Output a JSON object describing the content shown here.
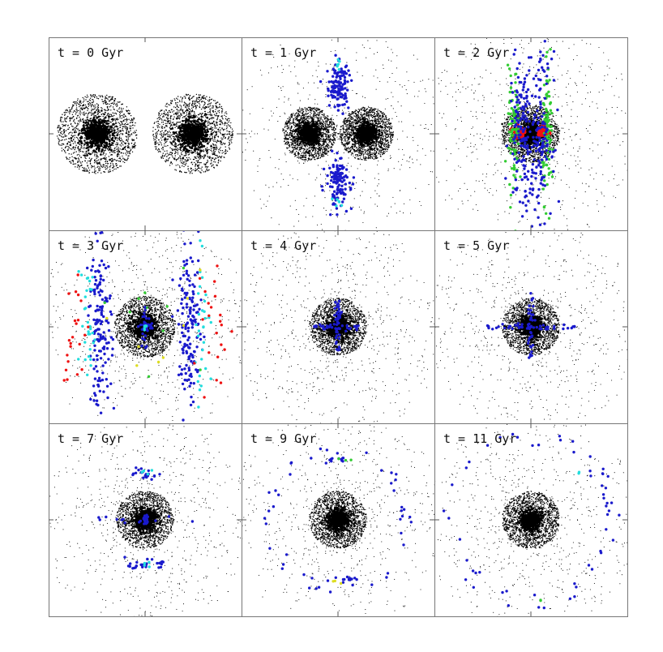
{
  "chart_data": {
    "type": "scatter",
    "layout": "3x3 grid of panels",
    "grid": false,
    "colors": {
      "galaxy_stars": "#000000",
      "tracer_blue": "#1a1acc",
      "tracer_cyan": "#22dddd",
      "tracer_green": "#33cc33",
      "tracer_red": "#ee1111",
      "tracer_yellow": "#dddd22"
    },
    "panels": [
      {
        "label": "t = 0 Gyr",
        "description": "two separate galaxies side by side",
        "galaxies": [
          {
            "x": -0.5,
            "y": 0.0,
            "radius": 0.42
          },
          {
            "x": 0.5,
            "y": 0.0,
            "radius": 0.42
          }
        ],
        "halo": 0.0,
        "features": []
      },
      {
        "label": "t = 1 Gyr",
        "description": "galaxies approaching with tidal features",
        "galaxies": [
          {
            "x": -0.3,
            "y": 0.0,
            "radius": 0.28
          },
          {
            "x": 0.3,
            "y": 0.0,
            "radius": 0.28
          }
        ],
        "halo": 0.75,
        "features": [
          {
            "kind": "blob",
            "cx": 0.0,
            "cy": 0.5,
            "rx": 0.12,
            "ry": 0.25,
            "n": 120,
            "color": "tracer_blue"
          },
          {
            "kind": "blob",
            "cx": 0.0,
            "cy": -0.5,
            "rx": 0.12,
            "ry": 0.25,
            "n": 120,
            "color": "tracer_blue"
          },
          {
            "kind": "blob",
            "cx": 0.0,
            "cy": 0.72,
            "rx": 0.05,
            "ry": 0.06,
            "n": 6,
            "color": "tracer_cyan"
          },
          {
            "kind": "blob",
            "cx": 0.0,
            "cy": -0.72,
            "rx": 0.05,
            "ry": 0.06,
            "n": 6,
            "color": "tracer_cyan"
          }
        ]
      },
      {
        "label": "t = 2 Gyr",
        "description": "first passage with strong tidal streams",
        "galaxies": [
          {
            "x": 0.0,
            "y": 0.0,
            "radius": 0.3
          }
        ],
        "halo": 0.9,
        "features": [
          {
            "kind": "blob",
            "cx": -0.13,
            "cy": 0.02,
            "rx": 0.05,
            "ry": 0.06,
            "n": 60,
            "color": "tracer_red"
          },
          {
            "kind": "blob",
            "cx": 0.13,
            "cy": 0.02,
            "rx": 0.05,
            "ry": 0.06,
            "n": 60,
            "color": "tracer_red"
          },
          {
            "kind": "blob",
            "cx": -0.18,
            "cy": 0.0,
            "rx": 0.06,
            "ry": 0.65,
            "n": 90,
            "color": "tracer_green"
          },
          {
            "kind": "blob",
            "cx": 0.18,
            "cy": 0.0,
            "rx": 0.06,
            "ry": 0.65,
            "n": 90,
            "color": "tracer_green"
          },
          {
            "kind": "blob",
            "cx": -0.1,
            "cy": 0.0,
            "rx": 0.12,
            "ry": 0.82,
            "n": 140,
            "color": "tracer_blue"
          },
          {
            "kind": "blob",
            "cx": 0.1,
            "cy": 0.0,
            "rx": 0.12,
            "ry": 0.82,
            "n": 140,
            "color": "tracer_blue"
          }
        ]
      },
      {
        "label": "t = 3 Gyr",
        "description": "merged remnant with extended shells",
        "galaxies": [
          {
            "x": 0.0,
            "y": 0.0,
            "radius": 0.32
          }
        ],
        "halo": 1.0,
        "features": [
          {
            "kind": "blob",
            "cx": -0.47,
            "cy": 0.0,
            "rx": 0.12,
            "ry": 0.82,
            "n": 150,
            "color": "tracer_blue"
          },
          {
            "kind": "blob",
            "cx": 0.47,
            "cy": 0.0,
            "rx": 0.12,
            "ry": 0.82,
            "n": 150,
            "color": "tracer_blue"
          },
          {
            "kind": "blob",
            "cx": -0.6,
            "cy": 0.0,
            "rx": 0.1,
            "ry": 0.7,
            "n": 30,
            "color": "tracer_cyan"
          },
          {
            "kind": "blob",
            "cx": 0.6,
            "cy": 0.0,
            "rx": 0.1,
            "ry": 0.7,
            "n": 30,
            "color": "tracer_cyan"
          },
          {
            "kind": "blob",
            "cx": -0.75,
            "cy": 0.0,
            "rx": 0.15,
            "ry": 0.8,
            "n": 22,
            "color": "tracer_red"
          },
          {
            "kind": "blob",
            "cx": 0.75,
            "cy": 0.0,
            "rx": 0.15,
            "ry": 0.8,
            "n": 22,
            "color": "tracer_red"
          },
          {
            "kind": "blob",
            "cx": 0.0,
            "cy": 0.0,
            "rx": 0.6,
            "ry": 0.7,
            "n": 10,
            "color": "tracer_green"
          },
          {
            "kind": "blob",
            "cx": 0.0,
            "cy": 0.0,
            "rx": 0.6,
            "ry": 0.7,
            "n": 8,
            "color": "tracer_yellow"
          },
          {
            "kind": "cross",
            "cx": 0.0,
            "cy": 0.0,
            "w": 0.08,
            "h": 0.22,
            "n": 40,
            "color": "tracer_blue"
          },
          {
            "kind": "blob",
            "cx": 0.0,
            "cy": 0.0,
            "rx": 0.02,
            "ry": 0.04,
            "n": 8,
            "color": "tracer_cyan"
          }
        ]
      },
      {
        "label": "t = 4 Gyr",
        "description": "relaxing remnant",
        "galaxies": [
          {
            "x": 0.0,
            "y": 0.0,
            "radius": 0.3
          }
        ],
        "halo": 1.0,
        "features": [
          {
            "kind": "cross",
            "cx": 0.0,
            "cy": 0.0,
            "w": 0.25,
            "h": 0.27,
            "n": 80,
            "color": "tracer_blue"
          }
        ]
      },
      {
        "label": "t = 5 Gyr",
        "description": "relaxing remnant",
        "galaxies": [
          {
            "x": 0.0,
            "y": 0.0,
            "radius": 0.3
          }
        ],
        "halo": 1.0,
        "features": [
          {
            "kind": "cross",
            "cx": 0.0,
            "cy": 0.0,
            "w": 0.48,
            "h": 0.35,
            "n": 80,
            "color": "tracer_blue"
          }
        ]
      },
      {
        "label": "t = 7 Gyr",
        "description": "remnant with tracer rings",
        "galaxies": [
          {
            "x": 0.0,
            "y": 0.0,
            "radius": 0.3
          }
        ],
        "halo": 1.0,
        "features": [
          {
            "kind": "blob",
            "cx": 0.0,
            "cy": 0.47,
            "rx": 0.12,
            "ry": 0.05,
            "n": 25,
            "color": "tracer_blue"
          },
          {
            "kind": "blob",
            "cx": 0.0,
            "cy": -0.47,
            "rx": 0.18,
            "ry": 0.05,
            "n": 30,
            "color": "tracer_blue"
          },
          {
            "kind": "blob",
            "cx": 0.0,
            "cy": 0.5,
            "rx": 0.06,
            "ry": 0.03,
            "n": 4,
            "color": "tracer_cyan"
          },
          {
            "kind": "blob",
            "cx": 0.0,
            "cy": -0.45,
            "rx": 0.06,
            "ry": 0.03,
            "n": 4,
            "color": "tracer_cyan"
          },
          {
            "kind": "cross",
            "cx": 0.0,
            "cy": 0.0,
            "w": 0.55,
            "h": 0.05,
            "n": 30,
            "color": "tracer_blue"
          }
        ]
      },
      {
        "label": "t = 9 Gyr",
        "description": "tracers dispersing into ring",
        "galaxies": [
          {
            "x": 0.0,
            "y": 0.0,
            "radius": 0.3
          }
        ],
        "halo": 1.0,
        "features": [
          {
            "kind": "ring",
            "cx": 0.0,
            "cy": 0.0,
            "r": 0.72,
            "n": 45,
            "color": "tracer_blue"
          },
          {
            "kind": "blob",
            "cx": 0.0,
            "cy": 0.62,
            "rx": 0.15,
            "ry": 0.03,
            "n": 12,
            "color": "tracer_blue"
          },
          {
            "kind": "blob",
            "cx": 0.0,
            "cy": -0.62,
            "rx": 0.2,
            "ry": 0.03,
            "n": 12,
            "color": "tracer_blue"
          },
          {
            "kind": "blob",
            "cx": 0.0,
            "cy": 0.62,
            "rx": 0.15,
            "ry": 0.03,
            "n": 3,
            "color": "tracer_green"
          },
          {
            "kind": "blob",
            "cx": 0.0,
            "cy": -0.64,
            "rx": 0.1,
            "ry": 0.03,
            "n": 3,
            "color": "tracer_yellow"
          }
        ]
      },
      {
        "label": "t = 11 Gyr",
        "description": "tracers in wide ring",
        "galaxies": [
          {
            "x": 0.0,
            "y": 0.0,
            "radius": 0.3
          }
        ],
        "halo": 1.0,
        "features": [
          {
            "kind": "ring",
            "cx": 0.0,
            "cy": 0.0,
            "r": 0.85,
            "n": 55,
            "color": "tracer_blue"
          },
          {
            "kind": "blob",
            "cx": 0.1,
            "cy": -0.85,
            "rx": 0.05,
            "ry": 0.03,
            "n": 2,
            "color": "tracer_green"
          },
          {
            "kind": "blob",
            "cx": 0.5,
            "cy": 0.5,
            "rx": 0.05,
            "ry": 0.03,
            "n": 2,
            "color": "tracer_cyan"
          }
        ]
      }
    ]
  }
}
